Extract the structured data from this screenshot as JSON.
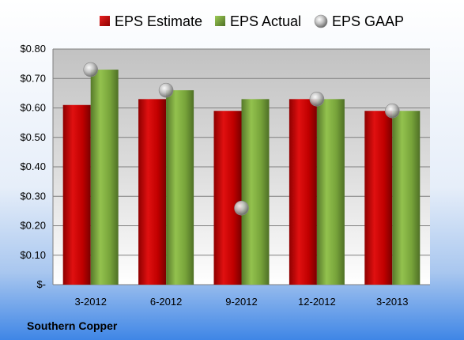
{
  "chart_data": {
    "type": "bar",
    "categories": [
      "3-2012",
      "6-2012",
      "9-2012",
      "12-2012",
      "3-2013"
    ],
    "series": [
      {
        "name": "EPS Estimate",
        "kind": "bar",
        "values": [
          0.61,
          0.63,
          0.59,
          0.63,
          0.59
        ],
        "color": "#cc0000"
      },
      {
        "name": "EPS Actual",
        "kind": "bar",
        "values": [
          0.73,
          0.66,
          0.63,
          0.63,
          0.59
        ],
        "color": "#77a33a"
      },
      {
        "name": "EPS GAAP",
        "kind": "scatter",
        "values": [
          0.73,
          0.66,
          0.26,
          0.63,
          0.59
        ],
        "color": "#b0b0b0"
      }
    ],
    "ylim": [
      0,
      0.8
    ],
    "ytick_values": [
      0,
      0.1,
      0.2,
      0.3,
      0.4,
      0.5,
      0.6,
      0.7,
      0.8
    ],
    "ytick_labels": [
      "$-",
      "$0.10",
      "$0.20",
      "$0.30",
      "$0.40",
      "$0.50",
      "$0.60",
      "$0.70",
      "$0.80"
    ],
    "grid": true,
    "legend_position": "top"
  },
  "footer": {
    "company": "Southern Copper"
  }
}
